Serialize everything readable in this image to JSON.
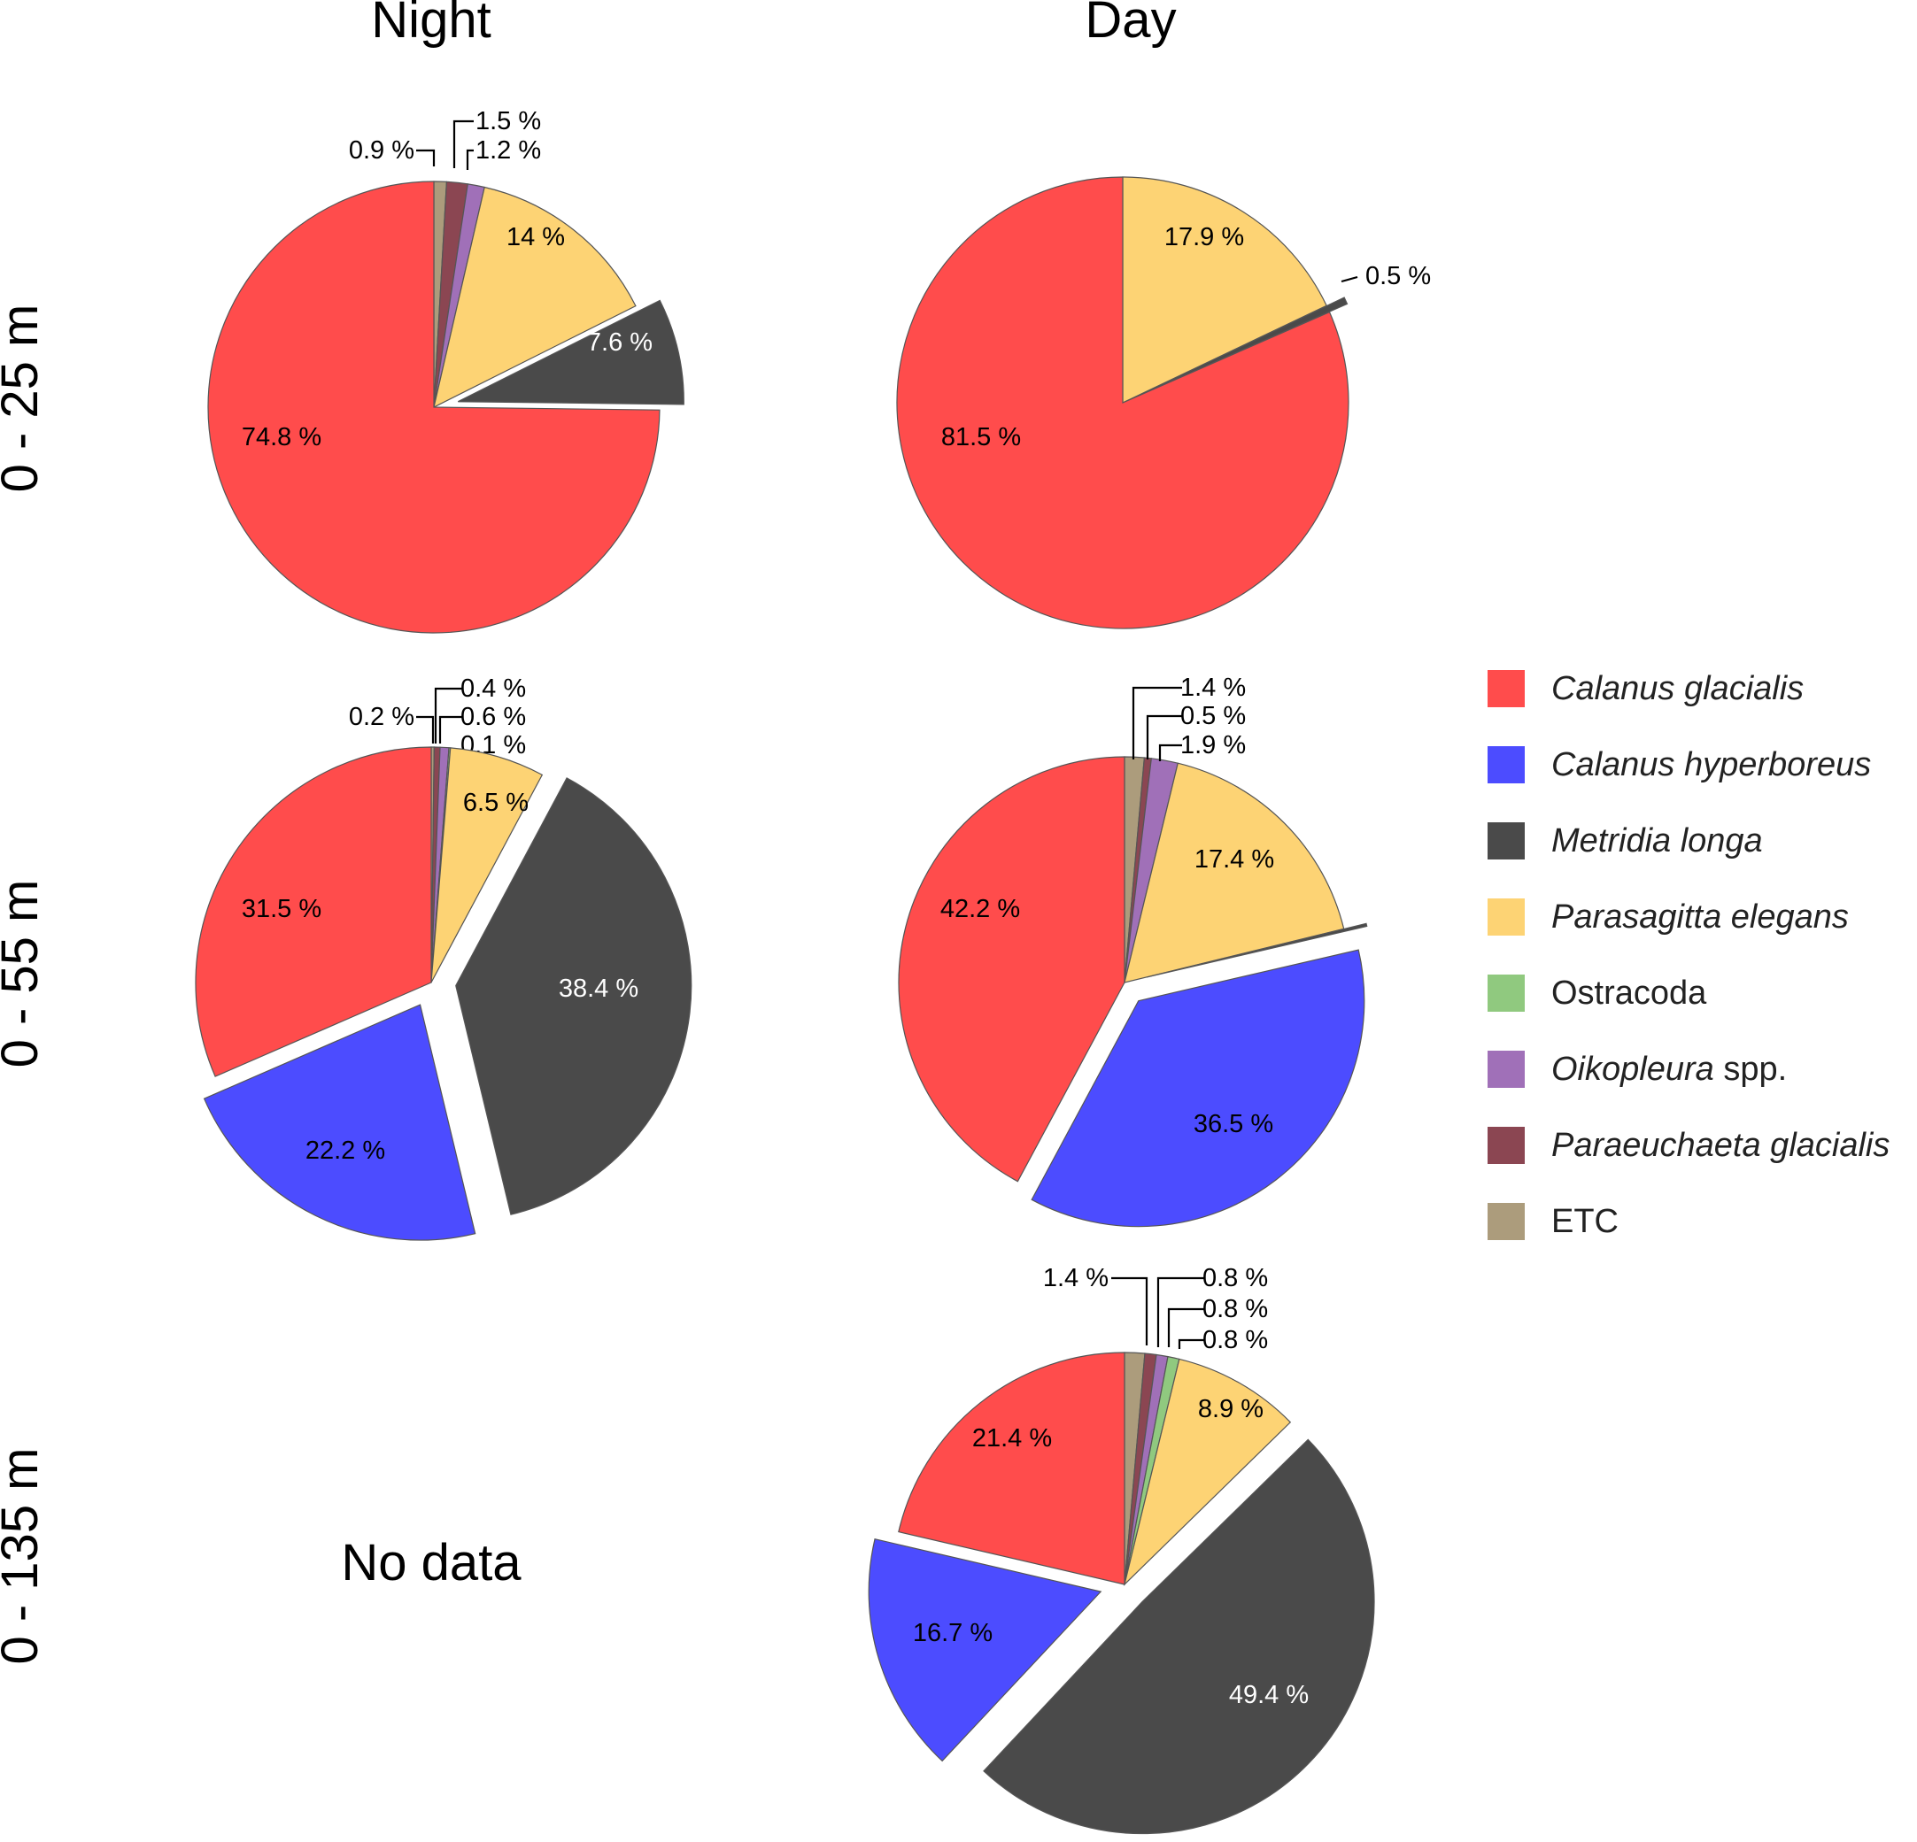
{
  "chart_data": {
    "type": "pie",
    "title": "",
    "columns": [
      "Night",
      "Day"
    ],
    "rows": [
      "0 - 25 m",
      "0 - 55 m",
      "0 - 135 m"
    ],
    "no_data_label": "No data",
    "legend": [
      {
        "key": "cg",
        "label": "Calanus glacialis",
        "italic": true,
        "color": "#ff4c4c"
      },
      {
        "key": "ch",
        "label": "Calanus hyperboreus",
        "italic": true,
        "color": "#4c4cff"
      },
      {
        "key": "ml",
        "label": "Metridia longa",
        "italic": true,
        "color": "#4a4a4a"
      },
      {
        "key": "pe",
        "label": "Parasagitta elegans",
        "italic": true,
        "color": "#fdd374"
      },
      {
        "key": "os",
        "label": "Ostracoda",
        "italic": false,
        "color": "#90c97f"
      },
      {
        "key": "oi",
        "label": "Oikopleura",
        "suffix": " spp.",
        "italic": true,
        "color": "#a070b8"
      },
      {
        "key": "pg",
        "label": "Paraeuchaeta glacialis",
        "italic": true,
        "color": "#8b4652"
      },
      {
        "key": "etc",
        "label": "ETC",
        "italic": false,
        "color": "#ac9c7c"
      }
    ],
    "pies": [
      {
        "id": "night-0-25",
        "column": "Night",
        "row": "0 - 25 m",
        "slices": [
          {
            "key": "etc",
            "value": 0.9,
            "label": "0.9 %"
          },
          {
            "key": "pg",
            "value": 1.5,
            "label": "1.5 %"
          },
          {
            "key": "oi",
            "value": 1.2,
            "label": "1.2 %"
          },
          {
            "key": "pe",
            "value": 14,
            "label": "14 %"
          },
          {
            "key": "ml",
            "value": 7.6,
            "label": "7.6 %"
          },
          {
            "key": "cg",
            "value": 74.8,
            "label": "74.8 %"
          }
        ]
      },
      {
        "id": "day-0-25",
        "column": "Day",
        "row": "0 - 25 m",
        "slices": [
          {
            "key": "pe",
            "value": 17.9,
            "label": "17.9 %"
          },
          {
            "key": "ml",
            "value": 0.5,
            "label": "0.5 %"
          },
          {
            "key": "cg",
            "value": 81.5,
            "label": "81.5 %"
          }
        ]
      },
      {
        "id": "night-0-55",
        "column": "Night",
        "row": "0 - 55 m",
        "slices": [
          {
            "key": "etc",
            "value": 0.2,
            "label": "0.2 %"
          },
          {
            "key": "pg",
            "value": 0.4,
            "label": "0.4 %"
          },
          {
            "key": "oi",
            "value": 0.6,
            "label": "0.6 %"
          },
          {
            "key": "os",
            "value": 0.1,
            "label": "0.1 %"
          },
          {
            "key": "pe",
            "value": 6.5,
            "label": "6.5 %"
          },
          {
            "key": "ml",
            "value": 38.4,
            "label": "38.4 %"
          },
          {
            "key": "ch",
            "value": 22.2,
            "label": "22.2 %"
          },
          {
            "key": "cg",
            "value": 31.5,
            "label": "31.5 %"
          }
        ]
      },
      {
        "id": "day-0-55",
        "column": "Day",
        "row": "0 - 55 m",
        "slices": [
          {
            "key": "etc",
            "value": 1.4,
            "label": "1.4 %"
          },
          {
            "key": "pg",
            "value": 0.5,
            "label": "0.5 %"
          },
          {
            "key": "oi",
            "value": 1.9,
            "label": "1.9 %"
          },
          {
            "key": "pe",
            "value": 17.4,
            "label": "17.4 %"
          },
          {
            "key": "ml",
            "value": 0.2,
            "label": ""
          },
          {
            "key": "ch",
            "value": 36.5,
            "label": "36.5 %"
          },
          {
            "key": "cg",
            "value": 42.2,
            "label": "42.2 %"
          }
        ]
      },
      {
        "id": "day-0-135",
        "column": "Day",
        "row": "0 - 135 m",
        "slices": [
          {
            "key": "etc",
            "value": 1.4,
            "label": "1.4 %"
          },
          {
            "key": "pg",
            "value": 0.8,
            "label": "0.8 %"
          },
          {
            "key": "oi",
            "value": 0.8,
            "label": "0.8 %"
          },
          {
            "key": "os",
            "value": 0.8,
            "label": "0.8 %"
          },
          {
            "key": "pe",
            "value": 8.9,
            "label": "8.9 %"
          },
          {
            "key": "ml",
            "value": 49.4,
            "label": "49.4 %"
          },
          {
            "key": "ch",
            "value": 16.7,
            "label": "16.7 %"
          },
          {
            "key": "cg",
            "value": 21.4,
            "label": "21.4 %"
          }
        ]
      }
    ]
  }
}
